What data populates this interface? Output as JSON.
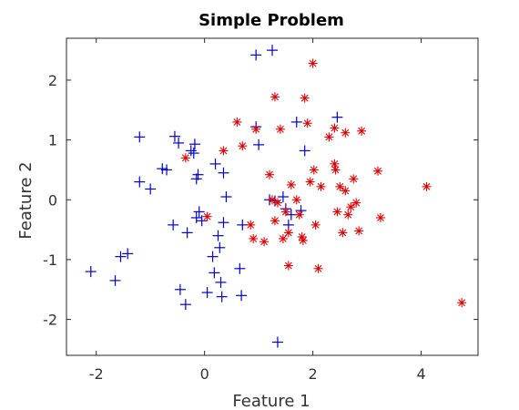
{
  "chart_data": {
    "type": "scatter",
    "title": "Simple Problem",
    "xlabel": "Feature 1",
    "ylabel": "Feature 2",
    "xlim": [
      -2.55,
      5.05
    ],
    "ylim": [
      -2.6,
      2.7
    ],
    "xticks": [
      -2,
      0,
      2,
      4
    ],
    "yticks": [
      -2,
      -1,
      0,
      1,
      2
    ],
    "grid": false,
    "series": [
      {
        "marker": "+",
        "color": "#0000cc",
        "points": [
          [
            -2.1,
            -1.2
          ],
          [
            -1.65,
            -1.35
          ],
          [
            -1.55,
            -0.95
          ],
          [
            -1.42,
            -0.9
          ],
          [
            -1.2,
            1.05
          ],
          [
            -1.2,
            0.3
          ],
          [
            -1.0,
            0.18
          ],
          [
            -0.78,
            0.52
          ],
          [
            -0.7,
            0.5
          ],
          [
            -0.55,
            1.06
          ],
          [
            -0.48,
            0.95
          ],
          [
            -0.58,
            -0.42
          ],
          [
            -0.45,
            -1.5
          ],
          [
            -0.35,
            -1.75
          ],
          [
            -0.32,
            -0.55
          ],
          [
            -0.25,
            0.82
          ],
          [
            -0.2,
            0.78
          ],
          [
            -0.18,
            0.93
          ],
          [
            -0.15,
            0.35
          ],
          [
            -0.12,
            0.42
          ],
          [
            -0.1,
            -0.2
          ],
          [
            -0.15,
            -0.3
          ],
          [
            -0.05,
            -0.35
          ],
          [
            0.05,
            -1.55
          ],
          [
            0.15,
            -0.95
          ],
          [
            0.18,
            -1.22
          ],
          [
            0.2,
            0.6
          ],
          [
            0.25,
            -0.6
          ],
          [
            0.28,
            -0.8
          ],
          [
            0.3,
            -1.38
          ],
          [
            0.32,
            -1.62
          ],
          [
            0.35,
            -0.38
          ],
          [
            0.35,
            0.45
          ],
          [
            0.4,
            0.05
          ],
          [
            0.65,
            -1.15
          ],
          [
            0.68,
            -1.6
          ],
          [
            0.7,
            -0.42
          ],
          [
            0.95,
            2.42
          ],
          [
            1.25,
            2.5
          ],
          [
            0.95,
            1.22
          ],
          [
            1.0,
            0.92
          ],
          [
            1.2,
            0.0
          ],
          [
            1.3,
            -0.02
          ],
          [
            1.35,
            -2.38
          ],
          [
            1.45,
            0.05
          ],
          [
            1.5,
            -0.15
          ],
          [
            1.55,
            -0.42
          ],
          [
            1.6,
            -0.25
          ],
          [
            1.7,
            1.3
          ],
          [
            1.78,
            -0.18
          ],
          [
            1.85,
            0.82
          ],
          [
            2.45,
            1.38
          ]
        ]
      },
      {
        "marker": "*",
        "color": "#dd0000",
        "points": [
          [
            -0.35,
            0.7
          ],
          [
            0.05,
            -0.28
          ],
          [
            0.35,
            0.82
          ],
          [
            0.6,
            1.3
          ],
          [
            0.7,
            0.9
          ],
          [
            0.85,
            -0.42
          ],
          [
            0.9,
            -0.65
          ],
          [
            0.95,
            1.18
          ],
          [
            1.1,
            -0.7
          ],
          [
            1.2,
            0.42
          ],
          [
            1.25,
            0.0
          ],
          [
            1.3,
            -0.35
          ],
          [
            1.3,
            1.72
          ],
          [
            1.35,
            -0.05
          ],
          [
            1.4,
            1.18
          ],
          [
            1.45,
            -0.65
          ],
          [
            1.5,
            -0.2
          ],
          [
            1.55,
            -1.1
          ],
          [
            1.55,
            -0.55
          ],
          [
            1.6,
            0.25
          ],
          [
            1.7,
            0.0
          ],
          [
            1.75,
            -0.25
          ],
          [
            1.8,
            -0.62
          ],
          [
            1.82,
            -0.68
          ],
          [
            1.85,
            1.7
          ],
          [
            1.9,
            1.28
          ],
          [
            1.95,
            0.3
          ],
          [
            2.0,
            2.28
          ],
          [
            2.02,
            0.5
          ],
          [
            2.05,
            -0.42
          ],
          [
            2.1,
            -1.15
          ],
          [
            2.15,
            0.22
          ],
          [
            2.3,
            1.05
          ],
          [
            2.4,
            1.2
          ],
          [
            2.4,
            0.6
          ],
          [
            2.42,
            0.5
          ],
          [
            2.45,
            -0.2
          ],
          [
            2.5,
            0.22
          ],
          [
            2.55,
            -0.55
          ],
          [
            2.6,
            1.12
          ],
          [
            2.6,
            0.15
          ],
          [
            2.65,
            -0.25
          ],
          [
            2.7,
            -0.12
          ],
          [
            2.75,
            0.35
          ],
          [
            2.8,
            -0.05
          ],
          [
            2.85,
            -0.52
          ],
          [
            2.9,
            1.15
          ],
          [
            3.2,
            0.48
          ],
          [
            3.25,
            -0.3
          ],
          [
            4.1,
            0.22
          ],
          [
            4.75,
            -1.72
          ]
        ]
      }
    ]
  }
}
